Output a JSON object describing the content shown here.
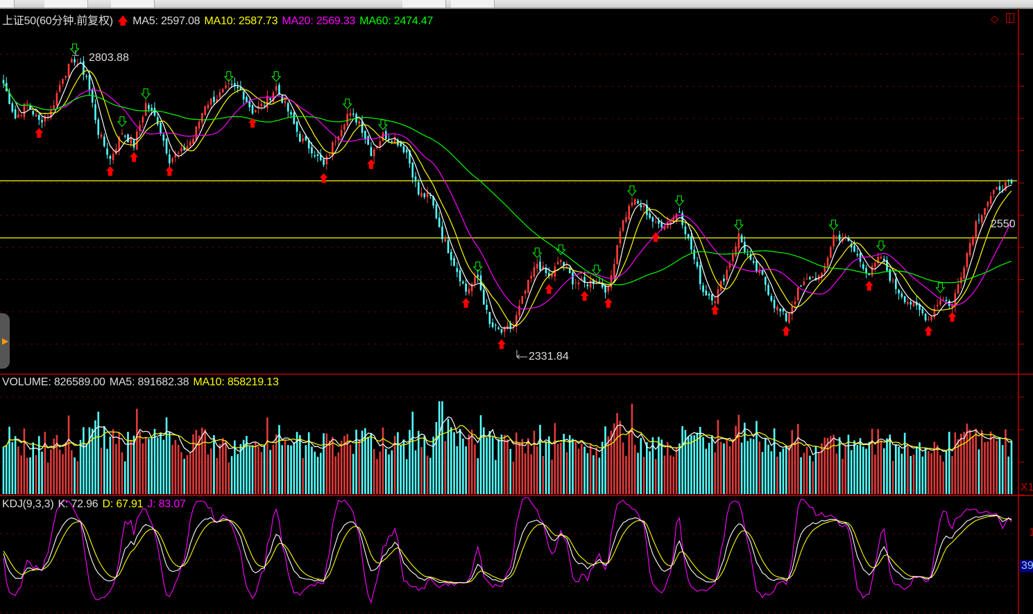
{
  "header": {
    "title": "上证50(60分钟.前复权)",
    "ma5": "MA5: 2597.08",
    "ma10": "MA10: 2587.73",
    "ma20": "MA20: 2569.33",
    "ma60": "MA60: 2474.47"
  },
  "volume_header": {
    "label": "VOLUME: 826589.00",
    "ma5": "MA5: 891682.38",
    "ma10": "MA10: 858219.13"
  },
  "kdj_header": {
    "label": "KDJ(9,3,3)",
    "k": "K: 72.96",
    "d": "D: 67.91",
    "j": "J: 83.07"
  },
  "annotations": {
    "high": "2803.88",
    "low": "2331.84",
    "right_price": "2550",
    "volume_scale": "X1",
    "kdj_value": "39",
    "kdj_tick": "1"
  },
  "colors": {
    "up": "#ff3b3b",
    "down": "#54ffff",
    "ma5": "#ffffff",
    "ma10": "#ffff00",
    "ma20": "#ff00ff",
    "ma60": "#00ff00",
    "axis": "#c00000",
    "hline": "#ffff00"
  },
  "chart_data": {
    "type": "candlestick",
    "series_name": "上证50(60分钟.前复权)",
    "close_keypoints": [
      2758,
      2703,
      2725,
      2698,
      2714,
      2769,
      2796,
      2769,
      2681,
      2638,
      2681,
      2660,
      2725,
      2698,
      2638,
      2649,
      2671,
      2725,
      2736,
      2752,
      2747,
      2714,
      2725,
      2752,
      2714,
      2671,
      2654,
      2627,
      2671,
      2709,
      2698,
      2649,
      2676,
      2671,
      2649,
      2583,
      2578,
      2518,
      2474,
      2430,
      2452,
      2376,
      2365,
      2376,
      2430,
      2474,
      2452,
      2479,
      2447,
      2441,
      2447,
      2430,
      2529,
      2572,
      2561,
      2534,
      2539,
      2556,
      2496,
      2430,
      2419,
      2463,
      2518,
      2474,
      2452,
      2408,
      2386,
      2430,
      2452,
      2452,
      2518,
      2512,
      2485,
      2457,
      2485,
      2441,
      2419,
      2403,
      2386,
      2419,
      2408,
      2474,
      2539,
      2572,
      2594,
      2600
    ],
    "horizontal_lines": [
      2604,
      2514
    ],
    "max_price": 2803.88,
    "min_price": 2331.84,
    "moving_averages": [
      5,
      10,
      20,
      60
    ],
    "grid": true
  }
}
